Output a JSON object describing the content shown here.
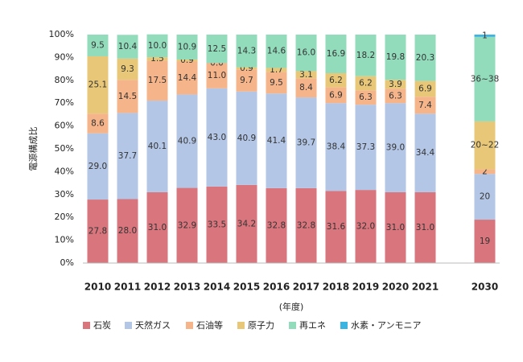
{
  "chart_data": {
    "type": "bar",
    "stacked": true,
    "y_label": "電源構成比",
    "x_label": "(年度)",
    "categories": [
      "2010",
      "2011",
      "2012",
      "2013",
      "2014",
      "2015",
      "2016",
      "2017",
      "2018",
      "2019",
      "2020",
      "2021",
      null,
      "2030"
    ],
    "ylim": [
      0,
      100
    ],
    "yticks": [
      {
        "value": 0,
        "label": "0%"
      },
      {
        "value": 10,
        "label": "10%"
      },
      {
        "value": 20,
        "label": "20%"
      },
      {
        "value": 30,
        "label": "30%"
      },
      {
        "value": 40,
        "label": "40%"
      },
      {
        "value": 50,
        "label": "50%"
      },
      {
        "value": 60,
        "label": "60%"
      },
      {
        "value": 70,
        "label": "70%"
      },
      {
        "value": 80,
        "label": "80%"
      },
      {
        "value": 90,
        "label": "90%"
      },
      {
        "value": 100,
        "label": "100%"
      }
    ],
    "grid": false,
    "legend": "bottom",
    "series": [
      {
        "name": "石炭",
        "color": "#d9757c",
        "values": [
          27.8,
          28.0,
          31.0,
          32.9,
          33.5,
          34.2,
          32.8,
          32.8,
          31.6,
          32.0,
          31.0,
          31.0,
          null,
          19
        ],
        "value_labels": [
          "27.8",
          "28.0",
          "31.0",
          "32.9",
          "33.5",
          "34.2",
          "32.8",
          "32.8",
          "31.6",
          "32.0",
          "31.0",
          "31.0",
          null,
          "19"
        ]
      },
      {
        "name": "天然ガス",
        "color": "#b3c6e5",
        "values": [
          29.0,
          37.7,
          40.1,
          40.9,
          43.0,
          40.9,
          41.4,
          39.7,
          38.4,
          37.3,
          39.0,
          34.4,
          null,
          20
        ],
        "value_labels": [
          "29.0",
          "37.7",
          "40.1",
          "40.9",
          "43.0",
          "40.9",
          "41.4",
          "39.7",
          "38.4",
          "37.3",
          "39.0",
          "34.4",
          null,
          "20"
        ]
      },
      {
        "name": "石油等",
        "color": "#f5b48a",
        "values": [
          8.6,
          14.5,
          17.5,
          14.4,
          11.0,
          9.7,
          9.5,
          8.4,
          6.9,
          6.3,
          6.3,
          7.4,
          null,
          2
        ],
        "value_labels": [
          "8.6",
          "14.5",
          "17.5",
          "14.4",
          "11.0",
          "9.7",
          "9.5",
          "8.4",
          "6.9",
          "6.3",
          "6.3",
          "7.4",
          null,
          "2"
        ]
      },
      {
        "name": "原子力",
        "color": "#e8c878",
        "values": [
          25.1,
          9.3,
          1.5,
          0.9,
          0.0,
          0.9,
          1.7,
          3.1,
          6.2,
          6.2,
          3.9,
          6.9,
          null,
          21
        ],
        "value_labels": [
          "25.1",
          "9.3",
          "1.5",
          "0.9",
          "0.0",
          "0.9",
          "1.7",
          "3.1",
          "6.2",
          "6.2",
          "3.9",
          "6.9",
          null,
          "20~22"
        ]
      },
      {
        "name": "再エネ",
        "color": "#92dcbc",
        "values": [
          9.5,
          10.4,
          10.0,
          10.9,
          12.5,
          14.3,
          14.6,
          16.0,
          16.9,
          18.2,
          19.8,
          20.3,
          null,
          37
        ],
        "value_labels": [
          "9.5",
          "10.4",
          "10.0",
          "10.9",
          "12.5",
          "14.3",
          "14.6",
          "16.0",
          "16.9",
          "18.2",
          "19.8",
          "20.3",
          null,
          "36~38"
        ]
      },
      {
        "name": "水素・アンモニア",
        "color": "#3cb4e2",
        "values": [
          null,
          null,
          null,
          null,
          null,
          null,
          null,
          null,
          null,
          null,
          null,
          null,
          null,
          1
        ],
        "value_labels": [
          null,
          null,
          null,
          null,
          null,
          null,
          null,
          null,
          null,
          null,
          null,
          null,
          null,
          "1"
        ]
      }
    ]
  }
}
